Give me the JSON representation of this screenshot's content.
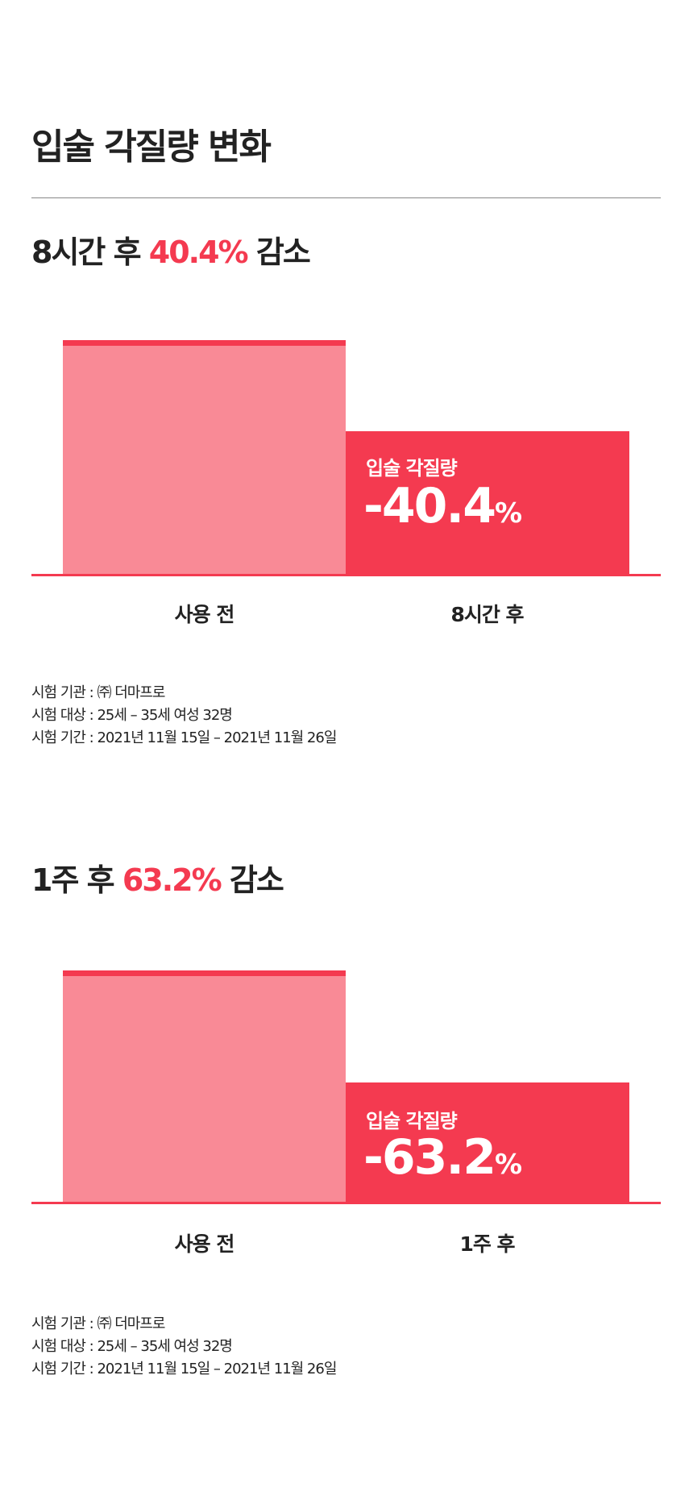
{
  "title": "입술 각질량 변화",
  "colors": {
    "accent": "#f43a50",
    "bar_before": "#f98a96",
    "bar_after": "#f43a50"
  },
  "sections": [
    {
      "heading_prefix": "8시간 후",
      "heading_highlight": "40.4%",
      "heading_suffix": "감소",
      "bar_label": "입술 각질량",
      "bar_value": "-40.4",
      "bar_unit": "%",
      "categories": [
        "사용 전",
        "8시간 후"
      ],
      "notes": [
        "시험 기관 : ㈜ 더마프로",
        "시험 대상 : 25세 – 35세 여성 32명",
        "시험 기간 : 2021년 11월 15일 – 2021년 11월 26일"
      ]
    },
    {
      "heading_prefix": "1주 후",
      "heading_highlight": "63.2%",
      "heading_suffix": "감소",
      "bar_label": "입술 각질량",
      "bar_value": "-63.2",
      "bar_unit": "%",
      "categories": [
        "사용 전",
        "1주 후"
      ],
      "notes": [
        "시험 기관 : ㈜ 더마프로",
        "시험 대상 : 25세 – 35세 여성 32명",
        "시험 기간 : 2021년 11월 15일 – 2021년 11월 26일"
      ]
    }
  ]
}
